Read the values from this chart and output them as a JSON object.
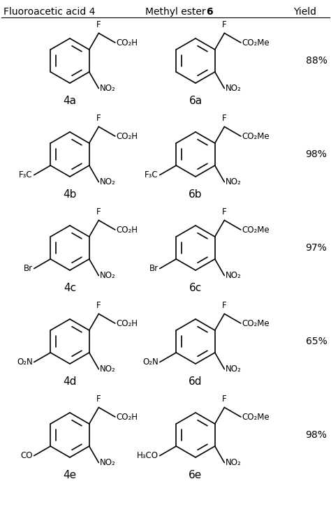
{
  "title_col1": "Fluoroacetic acid 4",
  "title_col2": "Methyl ester ",
  "title_col2_bold": "6",
  "title_col3": "Yield",
  "background_color": "#ffffff",
  "text_color": "#000000",
  "rows": [
    {
      "acid_label": "4a",
      "ester_label": "6a",
      "yield": "88%",
      "acid_sub_text": "",
      "ester_sub_text": ""
    },
    {
      "acid_label": "4b",
      "ester_label": "6b",
      "yield": "98%",
      "acid_sub_text": "F₃C",
      "ester_sub_text": "F₃C"
    },
    {
      "acid_label": "4c",
      "ester_label": "6c",
      "yield": "97%",
      "acid_sub_text": "Br",
      "ester_sub_text": "Br"
    },
    {
      "acid_label": "4d",
      "ester_label": "6d",
      "yield": "65%",
      "acid_sub_text": "O₂N",
      "ester_sub_text": "O₂N"
    },
    {
      "acid_label": "4e",
      "ester_label": "6e",
      "yield": "98%",
      "acid_sub_text": "CO",
      "ester_sub_text": "H₃CO"
    }
  ],
  "figsize": [
    4.74,
    7.49
  ],
  "dpi": 100
}
